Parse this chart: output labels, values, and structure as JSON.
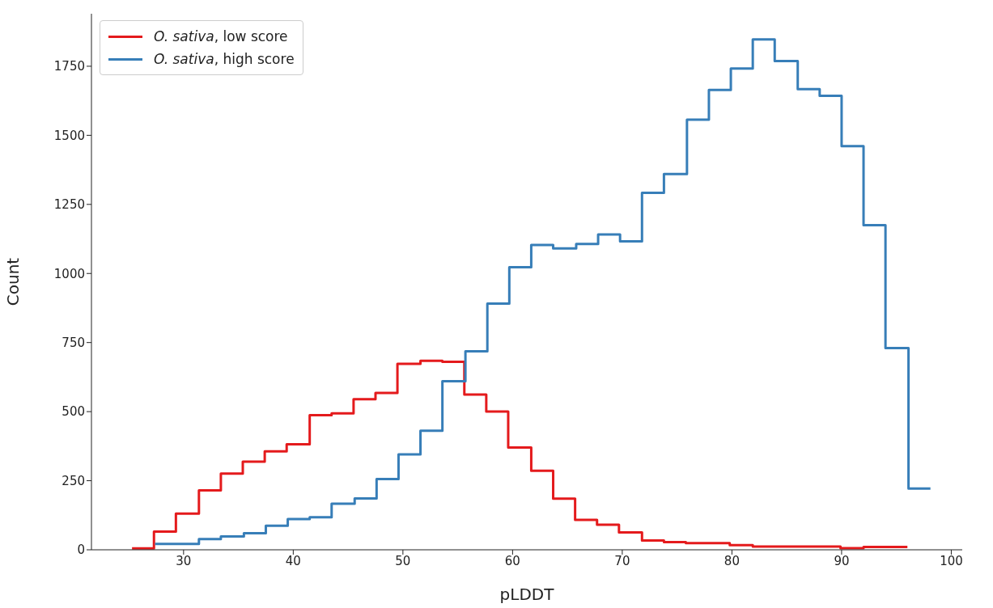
{
  "chart_data": {
    "type": "step",
    "xlabel": "pLDDT",
    "ylabel": "Count",
    "xlim": [
      21.6,
      101
    ],
    "xticks": [
      30,
      40,
      50,
      60,
      70,
      80,
      90,
      100
    ],
    "ylim": [
      0,
      1940
    ],
    "yticks": [
      0,
      250,
      500,
      750,
      1000,
      1250,
      1500,
      1750
    ],
    "grid": false,
    "legend": "top left",
    "line_style": "solid",
    "series": [
      {
        "name": "O. sativa, low score",
        "color": "#e41a1c",
        "x": [
          25.3,
          27.3,
          29.3,
          31.4,
          33.4,
          35.4,
          37.4,
          39.4,
          41.5,
          43.5,
          45.5,
          47.5,
          49.5,
          51.6,
          53.6,
          55.6,
          57.6,
          59.6,
          61.7,
          63.7,
          65.7,
          67.7,
          69.7,
          71.8,
          73.8,
          75.8,
          77.8,
          79.8,
          81.9,
          83.9,
          85.9,
          87.9,
          89.9,
          92.0,
          94.0,
          96.0
        ],
        "values": [
          5,
          66,
          131,
          215,
          276,
          319,
          356,
          382,
          487,
          494,
          545,
          568,
          673,
          684,
          680,
          562,
          500,
          370,
          286,
          185,
          108,
          91,
          63,
          34,
          28,
          24,
          24,
          17,
          12,
          12,
          12,
          12,
          6,
          10,
          10,
          10
        ]
      },
      {
        "name": "O. sativa, high score",
        "color": "#377eb8",
        "x": [
          27.4,
          29.4,
          31.4,
          33.4,
          35.5,
          37.5,
          39.5,
          41.5,
          43.5,
          45.6,
          47.6,
          49.6,
          51.6,
          53.6,
          55.7,
          57.7,
          59.7,
          61.7,
          63.7,
          65.8,
          67.8,
          69.8,
          71.8,
          73.8,
          75.9,
          77.9,
          79.9,
          81.9,
          83.9,
          86.0,
          88.0,
          90.0,
          92.0,
          94.0,
          96.1,
          98.1
        ],
        "values": [
          21,
          21,
          39,
          48,
          60,
          87,
          111,
          118,
          167,
          186,
          256,
          345,
          431,
          610,
          718,
          891,
          1023,
          1103,
          1091,
          1107,
          1141,
          1116,
          1292,
          1360,
          1557,
          1664,
          1742,
          1847,
          1769,
          1667,
          1643,
          1461,
          1175,
          730,
          222,
          222
        ]
      }
    ]
  }
}
